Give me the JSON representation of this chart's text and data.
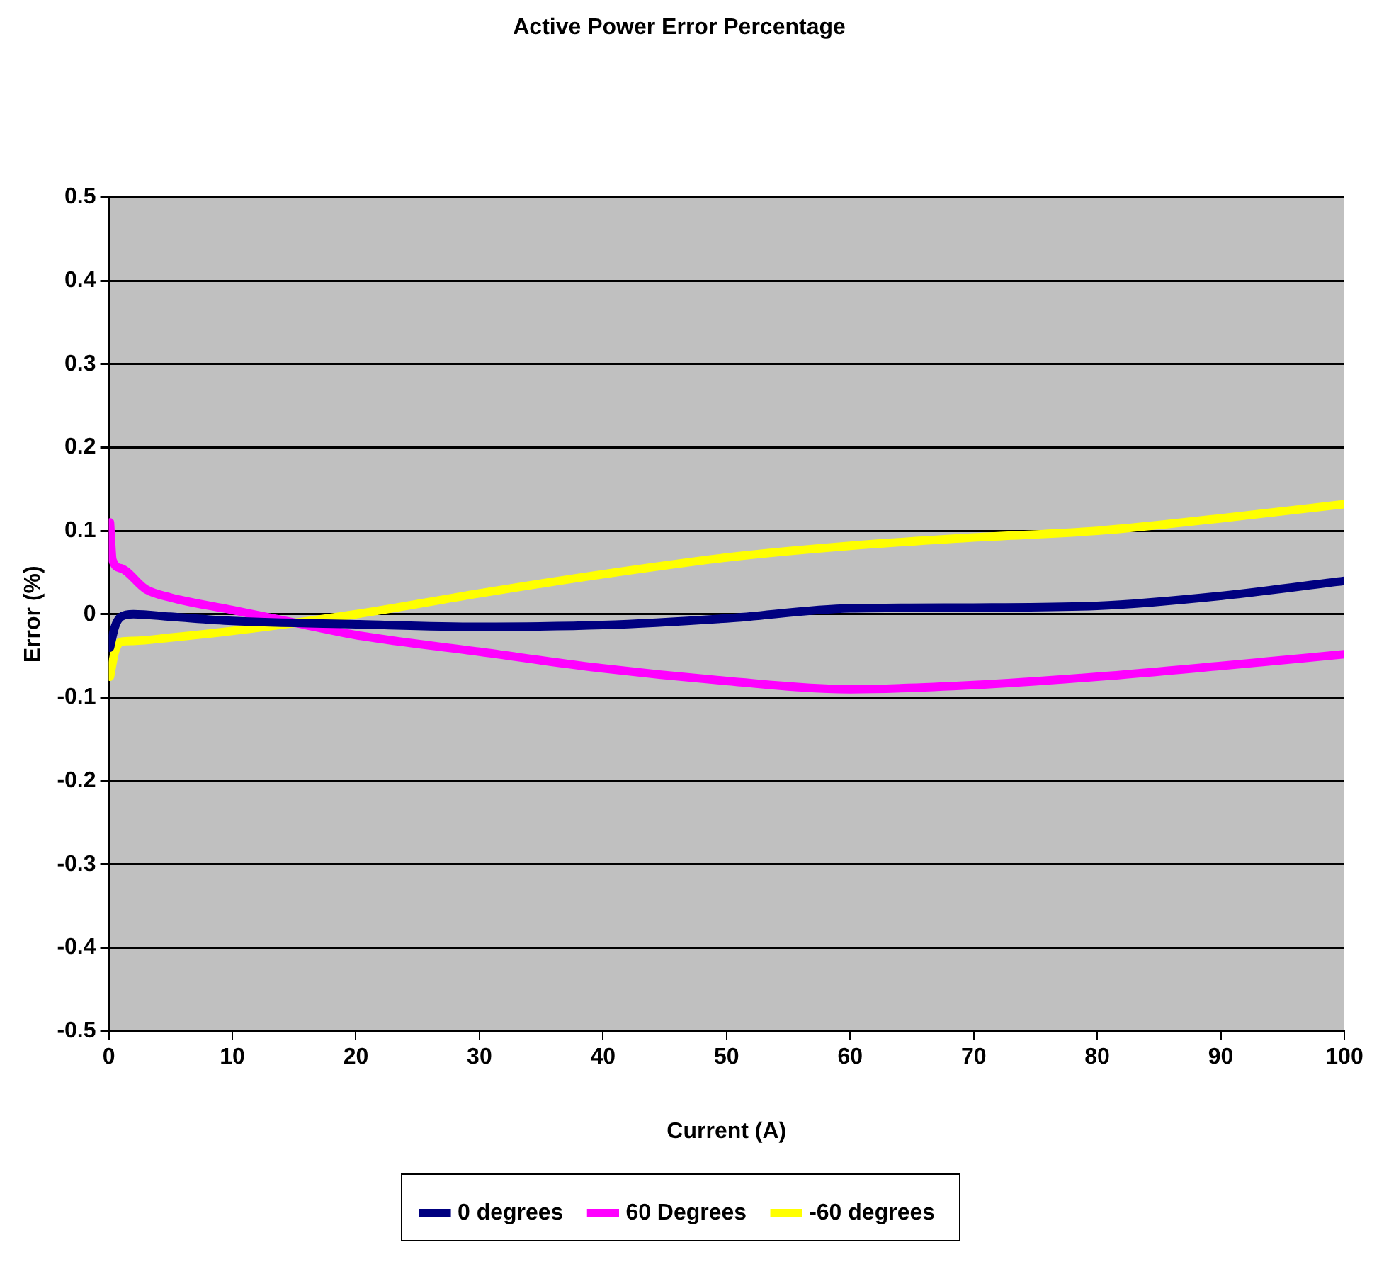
{
  "chart_data": {
    "type": "line",
    "title": "Active Power Error Percentage",
    "xlabel": "Current (A)",
    "ylabel": "Error (%)",
    "xlim": [
      0,
      100
    ],
    "xticks": [
      0,
      10,
      20,
      30,
      40,
      50,
      60,
      70,
      80,
      90,
      100
    ],
    "ylim": [
      -0.5,
      0.5
    ],
    "yticks": [
      -0.5,
      -0.4,
      -0.3,
      -0.2,
      -0.1,
      0,
      0.1,
      0.2,
      0.3,
      0.4,
      0.5
    ],
    "grid": "y",
    "legend": "bottom",
    "marker": "none",
    "line_style": "solid",
    "series": [
      {
        "name": "0 degrees",
        "color": "#000080",
        "x": [
          0.1,
          0.5,
          1,
          2,
          5,
          10,
          20,
          30,
          40,
          50,
          60,
          70,
          80,
          90,
          100
        ],
        "values": [
          -0.04,
          -0.015,
          -0.003,
          0.0,
          -0.003,
          -0.008,
          -0.012,
          -0.015,
          -0.013,
          -0.005,
          0.007,
          0.008,
          0.01,
          0.022,
          0.04
        ]
      },
      {
        "name": "60 Degrees",
        "color": "#ff00ff",
        "x": [
          0.1,
          0.3,
          1,
          3,
          5,
          10,
          15,
          20,
          30,
          40,
          50,
          60,
          70,
          80,
          90,
          100
        ],
        "values": [
          0.11,
          0.065,
          0.055,
          0.03,
          0.02,
          0.005,
          -0.01,
          -0.025,
          -0.045,
          -0.065,
          -0.08,
          -0.09,
          -0.085,
          -0.075,
          -0.062,
          -0.048
        ]
      },
      {
        "name": "-60 degrees",
        "color": "#ffff00",
        "x": [
          0.1,
          0.5,
          1,
          2,
          5,
          10,
          20,
          30,
          40,
          50,
          60,
          70,
          80,
          90,
          100
        ],
        "values": [
          -0.075,
          -0.045,
          -0.033,
          -0.032,
          -0.028,
          -0.02,
          0.0,
          0.025,
          0.048,
          0.068,
          0.082,
          0.092,
          0.1,
          0.115,
          0.132
        ]
      }
    ]
  }
}
